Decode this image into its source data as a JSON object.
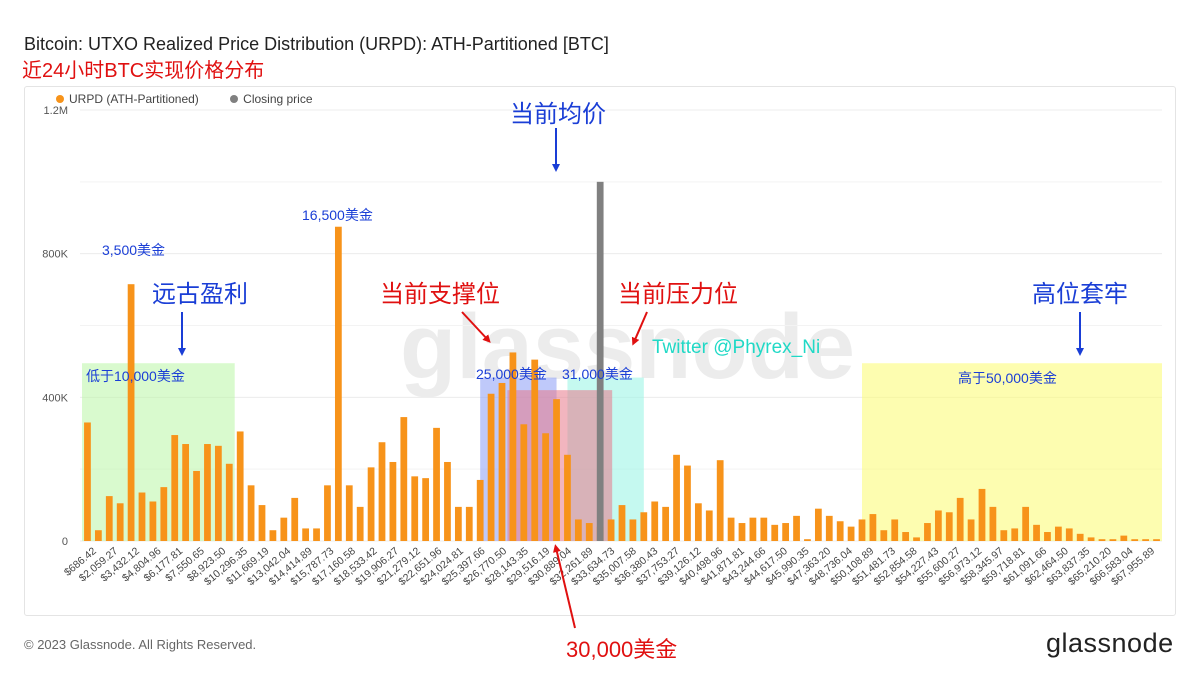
{
  "header": {
    "title": "Bitcoin: UTXO Realized Price Distribution (URPD): ATH-Partitioned [BTC]",
    "subtitle": "近24小时BTC实现价格分布"
  },
  "legend": {
    "items": [
      {
        "label": "URPD (ATH-Partitioned)",
        "color": "#f7931a"
      },
      {
        "label": "Closing price",
        "color": "#808080"
      }
    ]
  },
  "annotations": {
    "avg_price": "当前均价",
    "ancient_profit": "远古盈利",
    "below_10000": "低于10,000美金",
    "price_3500": "3,500美金",
    "price_16500": "16,500美金",
    "support": "当前支撑位",
    "resistance": "当前压力位",
    "band_25000": "25,000美金",
    "band_31000": "31,000美金",
    "twitter": "Twitter @Phyrex_Ni",
    "trapped_high": "高位套牢",
    "above_50000": "高于50,000美金",
    "price_30000": "30,000美金"
  },
  "footer": {
    "copyright": "© 2023 Glassnode. All Rights Reserved.",
    "logo": "glassnode"
  },
  "watermark": "glassnode",
  "colors": {
    "bar": "#f7931a",
    "closing": "#808080",
    "green_band": "#b9f5a5",
    "blue_band": "#8a9cf5",
    "red_band": "#e8788a",
    "cyan_band": "#9ff5e6",
    "yellow_band": "#fbfb70"
  },
  "chart_data": {
    "type": "bar",
    "y_ticks": [
      "0",
      "400K",
      "800K",
      "1.2M"
    ],
    "ylim": [
      0,
      1200000
    ],
    "x_tick_labels": [
      "$686.42",
      "$2,059.27",
      "$3,432.12",
      "$4,804.96",
      "$6,177.81",
      "$7,550.65",
      "$8,923.50",
      "$10,296.35",
      "$11,669.19",
      "$13,042.04",
      "$14,414.89",
      "$15,787.73",
      "$17,160.58",
      "$18,533.42",
      "$19,906.27",
      "$21,279.12",
      "$22,651.96",
      "$24,024.81",
      "$25,397.66",
      "$26,770.50",
      "$28,143.35",
      "$29,516.19",
      "$30,889.04",
      "$32,261.89",
      "$33,634.73",
      "$35,007.58",
      "$36,380.43",
      "$37,753.27",
      "$39,126.12",
      "$40,498.96",
      "$41,871.81",
      "$43,244.66",
      "$44,617.50",
      "$45,990.35",
      "$47,363.20",
      "$48,736.04",
      "$50,108.89",
      "$51,481.73",
      "$52,854.58",
      "$54,227.43",
      "$55,600.27",
      "$56,973.12",
      "$58,345.97",
      "$59,718.81",
      "$61,091.66",
      "$62,464.50",
      "$63,837.35",
      "$65,210.20",
      "$66,583.04",
      "$67,955.89"
    ],
    "series": [
      {
        "name": "URPD (ATH-Partitioned)",
        "values": [
          330000,
          30000,
          125000,
          105000,
          715000,
          135000,
          110000,
          150000,
          295000,
          270000,
          195000,
          270000,
          265000,
          215000,
          305000,
          155000,
          100000,
          30000,
          65000,
          120000,
          35000,
          35000,
          155000,
          875000,
          155000,
          95000,
          205000,
          275000,
          220000,
          345000,
          180000,
          175000,
          315000,
          220000,
          95000,
          95000,
          170000,
          410000,
          440000,
          525000,
          325000,
          505000,
          300000,
          395000,
          240000,
          60000,
          50000,
          40000,
          60000,
          100000,
          60000,
          80000,
          110000,
          95000,
          240000,
          210000,
          105000,
          85000,
          225000,
          65000,
          50000,
          65000,
          65000,
          45000,
          50000,
          70000,
          5000,
          90000,
          70000,
          55000,
          40000,
          60000,
          75000,
          30000,
          60000,
          25000,
          10000,
          50000,
          85000,
          80000,
          120000,
          60000,
          145000,
          95000,
          30000,
          35000,
          95000,
          45000,
          25000,
          40000,
          35000,
          20000,
          10000,
          5000,
          5000,
          15000,
          5000,
          5000,
          5000
        ]
      },
      {
        "name": "Closing price",
        "index": 47,
        "value": 1000000
      }
    ]
  }
}
